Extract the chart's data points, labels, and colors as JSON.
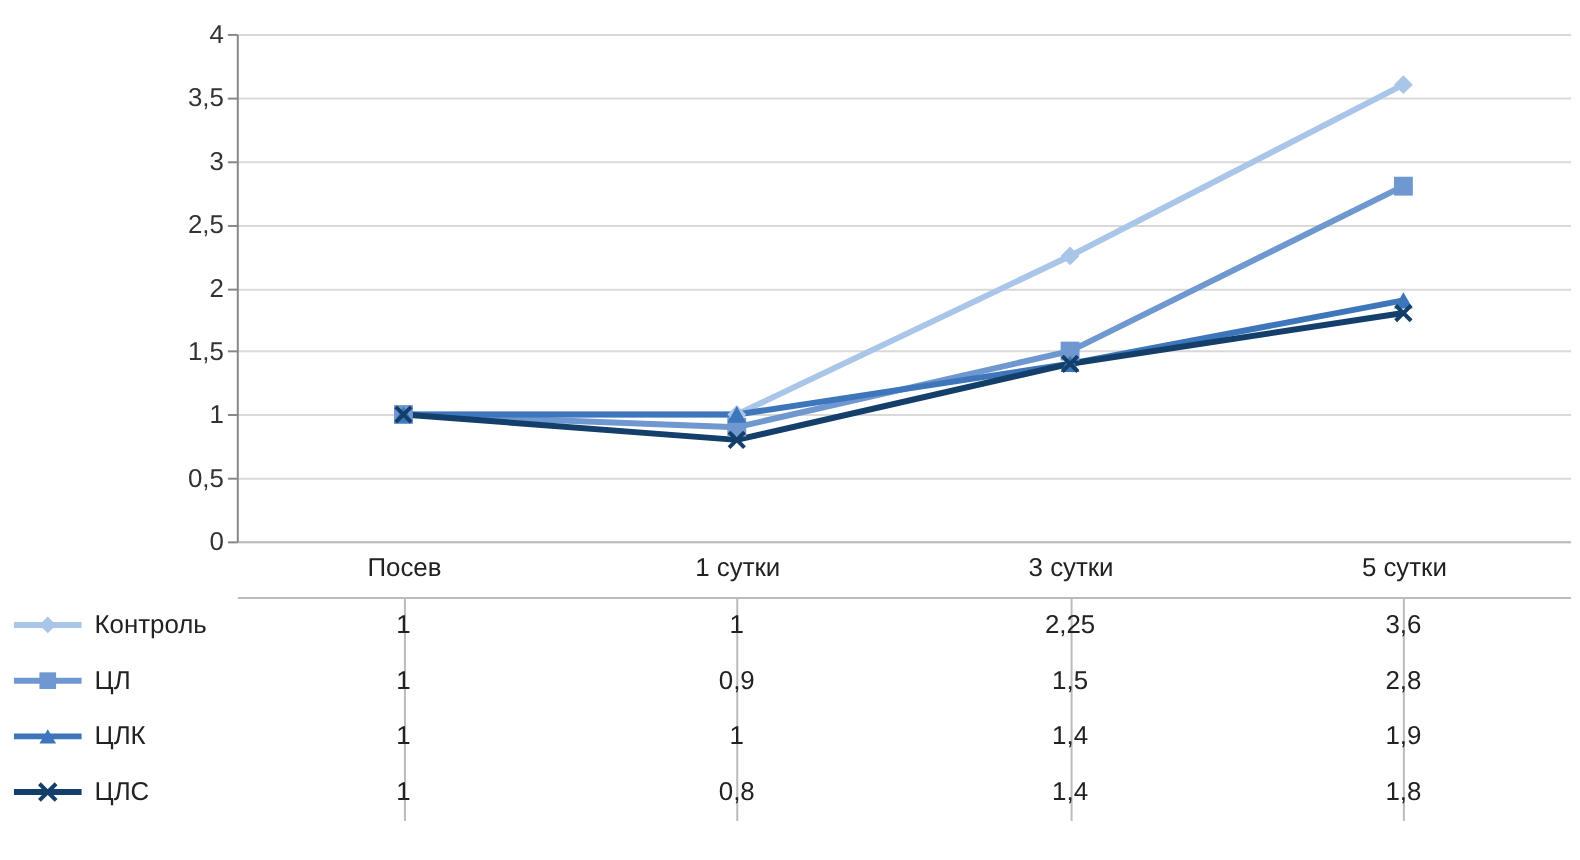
{
  "chart_data": {
    "type": "line",
    "categories": [
      "Посев",
      "1 сутки",
      "3 сутки",
      "5 сутки"
    ],
    "series": [
      {
        "name": "Контроль",
        "color": "#a9c5e8",
        "marker": "diamond",
        "values": [
          1,
          1,
          2.25,
          3.6
        ],
        "value_labels": [
          "1",
          "1",
          "2,25",
          "3,6"
        ]
      },
      {
        "name": "ЦЛ",
        "color": "#6f97d0",
        "marker": "square",
        "values": [
          1,
          0.9,
          1.5,
          2.8
        ],
        "value_labels": [
          "1",
          "0,9",
          "1,5",
          "2,8"
        ]
      },
      {
        "name": "ЦЛК",
        "color": "#3d76ba",
        "marker": "triangle",
        "values": [
          1,
          1,
          1.4,
          1.9
        ],
        "value_labels": [
          "1",
          "1",
          "1,4",
          "1,9"
        ]
      },
      {
        "name": "ЦЛС",
        "color": "#133f6a",
        "marker": "cross",
        "values": [
          1,
          0.8,
          1.4,
          1.8
        ],
        "value_labels": [
          "1",
          "0,8",
          "1,4",
          "1,8"
        ]
      }
    ],
    "ylim": [
      0,
      4
    ],
    "yticks": [
      0,
      {
        "value": 0.5,
        "label": "0,5"
      },
      1,
      {
        "value": 1.5,
        "label": "1,5"
      },
      2,
      {
        "value": 2.5,
        "label": "2,5"
      },
      3,
      {
        "value": 3.5,
        "label": "3,5"
      },
      4
    ],
    "grid": "y",
    "legend": "bottom left"
  }
}
